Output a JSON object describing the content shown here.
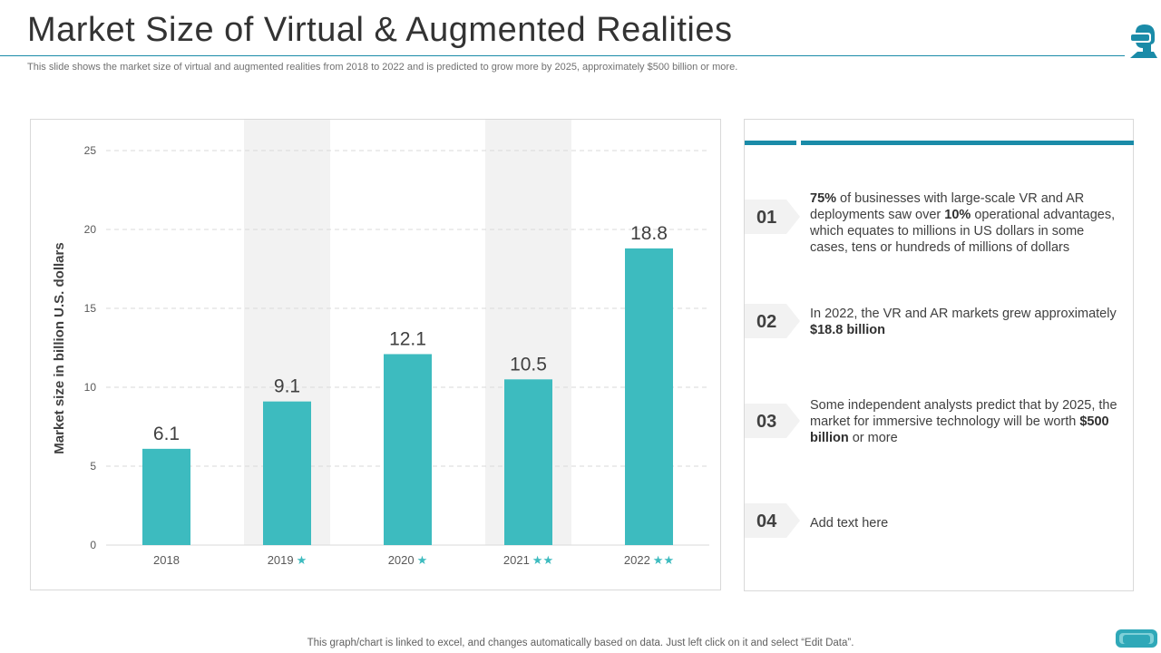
{
  "slide": {
    "title": "Market Size of Virtual & Augmented Realities",
    "subtitle": "This slide shows the market size of virtual  and augmented realities from 2018 to 2022 and is predicted to grow more by  2025, approximately $500 billion or more.",
    "footer": "This graph/chart is linked to excel,  and changes automatically based on data. Just left click on it and select “Edit Data”.",
    "accent_color": "#1a8ba8",
    "bar_color": "#3dbbbf",
    "highlight_band_color": "#f2f2f2",
    "logo_icon": "vr-headset-person-icon",
    "footer_icon": "vr-headset-icon"
  },
  "chart_data": {
    "type": "bar",
    "categories": [
      "2018",
      "2019",
      "2020",
      "2021",
      "2022"
    ],
    "category_stars": [
      "",
      "★",
      "★",
      "★★",
      "★★"
    ],
    "highlighted_categories": [
      "2019",
      "2021"
    ],
    "values": [
      6.1,
      9.1,
      12.1,
      10.5,
      18.8
    ],
    "value_labels": [
      "6.1",
      "9.1",
      "12.1",
      "10.5",
      "18.8"
    ],
    "ylabel": "Market size in billion U.S. dollars",
    "xlabel": "",
    "ylim": [
      0,
      25
    ],
    "yticks": [
      0,
      5,
      10,
      15,
      20,
      25
    ],
    "grid": true
  },
  "points": [
    {
      "number": "01",
      "parts": [
        {
          "text": "75%",
          "bold": true
        },
        {
          "text": " of businesses with large-scale VR and AR deployments saw over ",
          "bold": false
        },
        {
          "text": "10%",
          "bold": true
        },
        {
          "text": " operational advantages, which equates to millions in US dollars in some cases, tens or hundreds of millions of dollars",
          "bold": false
        }
      ]
    },
    {
      "number": "02",
      "parts": [
        {
          "text": "In 2022, the VR and AR markets grew approximately ",
          "bold": false
        },
        {
          "text": "$18.8 billion",
          "bold": true
        }
      ]
    },
    {
      "number": "03",
      "parts": [
        {
          "text": "Some independent  analysts predict that by 2025, the market for immersive technology will be worth ",
          "bold": false
        },
        {
          "text": "$500 billion",
          "bold": true
        },
        {
          "text": " or more",
          "bold": false
        }
      ]
    },
    {
      "number": "04",
      "parts": [
        {
          "text": "Add text here",
          "bold": false
        }
      ]
    }
  ]
}
